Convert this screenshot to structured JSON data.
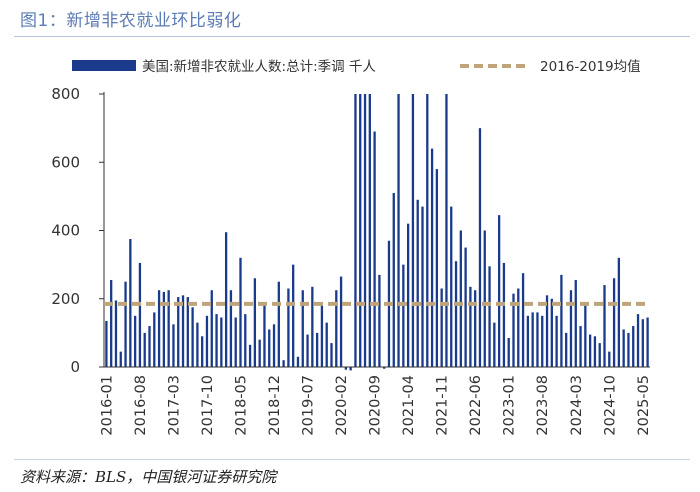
{
  "header": {
    "title": "图1：新增非农就业环比弱化"
  },
  "footer": {
    "source": "资料来源：BLS，中国银河证券研究院"
  },
  "colors": {
    "bar": "#1a3a8c",
    "average_line": "#bfa37a",
    "axis": "#333333",
    "text": "#333333",
    "title": "#5b7bb4"
  },
  "chart_data": {
    "type": "bar",
    "title": "",
    "xlabel": "",
    "ylabel": "",
    "ylim": [
      0,
      800
    ],
    "yticks": [
      0,
      200,
      400,
      600,
      800
    ],
    "clipped_at": 800,
    "xtick_labels": [
      "2016-01",
      "2016-08",
      "2017-03",
      "2017-10",
      "2018-05",
      "2018-12",
      "2019-07",
      "2020-02",
      "2020-09",
      "2021-04",
      "2021-11",
      "2022-06",
      "2023-01",
      "2023-08",
      "2024-03",
      "2024-10",
      "2025-05"
    ],
    "xtick_step": 7,
    "start_month": "2016-01",
    "series": [
      {
        "name": "美国:新增非农就业人数:总计:季调 千人",
        "type": "bar",
        "values": [
          135,
          255,
          195,
          45,
          250,
          375,
          150,
          305,
          100,
          120,
          160,
          225,
          220,
          225,
          125,
          205,
          210,
          205,
          175,
          130,
          90,
          150,
          225,
          155,
          145,
          395,
          225,
          145,
          320,
          155,
          65,
          260,
          80,
          180,
          110,
          125,
          250,
          20,
          230,
          300,
          30,
          225,
          95,
          235,
          100,
          180,
          130,
          70,
          225,
          265,
          -8,
          -20,
          800,
          800,
          800,
          800,
          690,
          270,
          -5,
          370,
          510,
          800,
          300,
          420,
          800,
          490,
          470,
          800,
          640,
          580,
          230,
          800,
          470,
          310,
          400,
          350,
          235,
          225,
          700,
          400,
          295,
          130,
          445,
          305,
          85,
          215,
          230,
          275,
          150,
          160,
          160,
          150,
          210,
          200,
          150,
          270,
          100,
          225,
          255,
          120,
          190,
          95,
          90,
          70,
          240,
          45,
          260,
          320,
          110,
          100,
          120,
          155,
          140,
          145
        ]
      },
      {
        "name": "2016-2019均值",
        "type": "line",
        "value": 185
      }
    ],
    "legend": [
      {
        "label": "美国:新增非农就业人数:总计:季调 千人",
        "kind": "bar"
      },
      {
        "label": "2016-2019均值",
        "kind": "dashed-line"
      }
    ],
    "legend_position": "top",
    "grid": false
  }
}
